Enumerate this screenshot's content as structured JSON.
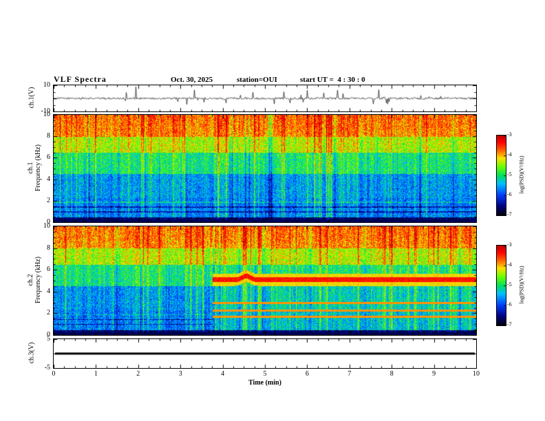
{
  "header": {
    "title": "VLF Spectra",
    "date": "Oct. 30, 2025",
    "station": "station=OUI",
    "start_ut": "start UT =  4 : 30 : 0"
  },
  "labels": {
    "ch1_v": "ch.1(V)",
    "ch1_name": "ch.1",
    "ch2_name": "ch.2",
    "freq_axis": "Frequency (kHz)",
    "ch3_v": "ch.3(V)",
    "time_axis": "Time (min)",
    "psd": "log(PSD)(V²/Hz)"
  },
  "xaxis": {
    "label": "Time (min)",
    "min": 0,
    "max": 10,
    "ticks": [
      0,
      1,
      2,
      3,
      4,
      5,
      6,
      7,
      8,
      9,
      10
    ]
  },
  "colorbar": {
    "label": "log(PSD)(V²/Hz)",
    "max": -3,
    "min": -7,
    "ticks": [
      -3,
      -4,
      -5,
      -6,
      -7
    ]
  },
  "colormap": [
    {
      "v": 0.0,
      "c": "#000005"
    },
    {
      "v": 0.12,
      "c": "#000080"
    },
    {
      "v": 0.26,
      "c": "#0040ff"
    },
    {
      "v": 0.4,
      "c": "#00c0ff"
    },
    {
      "v": 0.5,
      "c": "#00e060"
    },
    {
      "v": 0.62,
      "c": "#70ff00"
    },
    {
      "v": 0.72,
      "c": "#ffe000"
    },
    {
      "v": 0.82,
      "c": "#ff6000"
    },
    {
      "v": 0.92,
      "c": "#ff0000"
    },
    {
      "v": 1.0,
      "c": "#c00000"
    }
  ],
  "chart_data": [
    {
      "type": "line",
      "name": "ch1-waveform",
      "ylabel": "ch.1(V)",
      "ylim": [
        -10,
        10
      ],
      "yticks": [
        10,
        -10
      ],
      "xlim": [
        0,
        10
      ],
      "summary": "Noisy broadband time series centered on 0 V with frequent impulsive spikes reaching roughly +/-10 V across the full 0-10 min record."
    },
    {
      "type": "heatmap",
      "name": "ch1-spectrogram",
      "ylabel": "ch.1 Frequency (kHz)",
      "ylim": [
        0,
        10
      ],
      "yticks": [
        10,
        8,
        6,
        4,
        2,
        0
      ],
      "xlim": [
        0,
        10
      ],
      "zlabel": "log(PSD)(V²/Hz)",
      "zlim": [
        -7,
        -3
      ],
      "profile": [
        {
          "fmin": 8,
          "v": 0.78
        },
        {
          "fmin": 6.5,
          "v": 0.66
        },
        {
          "fmin": 4.5,
          "v": 0.5
        },
        {
          "fmin": 2.3,
          "v": 0.36
        },
        {
          "fmin": 0.5,
          "v": 0.33
        },
        {
          "fmin": 0,
          "v": 0.1
        }
      ],
      "summary": "Spectrogram 0-10 kHz over 0-10 min: high PSD (red/yellow, ~-3 to -4) above ~6.5 kHz, mottled green mid band, blue low-PSD band 1-4.5 kHz (~-6), near-black below 0.3 kHz, with many broadband impulsive vertical streaks (sferics) spanning all frequencies."
    },
    {
      "type": "heatmap",
      "name": "ch2-spectrogram",
      "ylabel": "ch.2 Frequency (kHz)",
      "ylim": [
        0,
        10
      ],
      "yticks": [
        10,
        8,
        6,
        4,
        2,
        0
      ],
      "xlim": [
        0,
        10
      ],
      "zlabel": "log(PSD)(V²/Hz)",
      "zlim": [
        -7,
        -3
      ],
      "features": {
        "tone_band_khz": 5.1,
        "tone_band_start_min": 3.75,
        "harmonic_lines_khz": [
          1.7,
          2.3,
          3.0
        ],
        "post_transition_boost": 0.08
      },
      "summary": "Similar to ch.1 before ~3.75 min; after ~3.75 min a strong continuous red tone band appears near 5 kHz (with a brief upward bump near 4.5 min), plus yellow harmonic lines near 1.7, 2.3 and 3 kHz, and a generally greener background below 4.5 kHz."
    },
    {
      "type": "line",
      "name": "ch3-waveform",
      "ylabel": "ch.3(V)",
      "ylim": [
        -5,
        5
      ],
      "yticks": [
        5,
        -5
      ],
      "xlim": [
        0,
        10
      ],
      "value_v": 0,
      "summary": "Constant flat heavy black trace at 0 V for the whole record (channel inactive)."
    }
  ]
}
